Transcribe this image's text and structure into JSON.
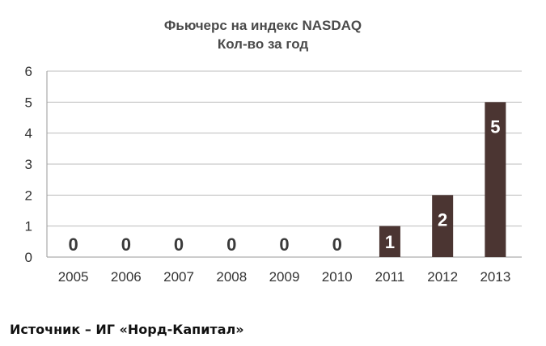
{
  "chart_data": {
    "type": "bar",
    "title": "Фьючерс на индекс NASDAQ",
    "subtitle": "Кол-во за год",
    "categories": [
      "2005",
      "2006",
      "2007",
      "2008",
      "2009",
      "2010",
      "2011",
      "2012",
      "2013"
    ],
    "values": [
      0,
      0,
      0,
      0,
      0,
      0,
      1,
      2,
      5
    ],
    "ylim": [
      0,
      6
    ],
    "yticks": [
      "0",
      "1",
      "2",
      "3",
      "4",
      "5",
      "6"
    ],
    "xlabel": "",
    "ylabel": "",
    "grid": true,
    "bar_color": "#4b3532",
    "label_on_bar_color": "#ffffff",
    "label_zero_color": "#3a3a3a"
  },
  "source_text": "Источник – ИГ «Норд-Капитал»"
}
